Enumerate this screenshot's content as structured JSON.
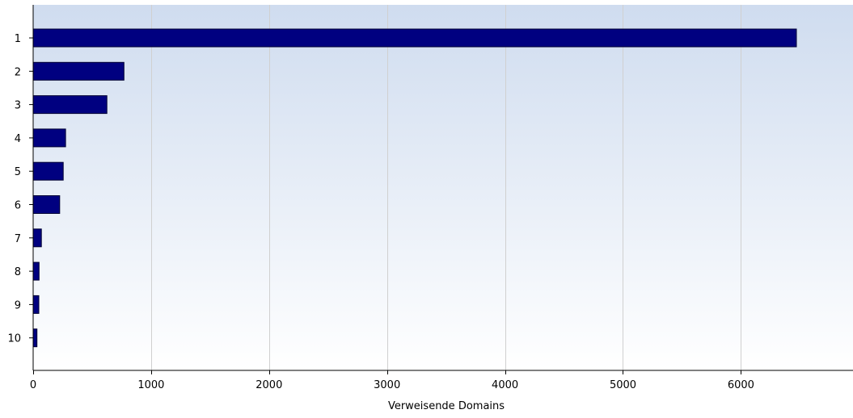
{
  "chart_data": {
    "type": "bar",
    "orientation": "horizontal",
    "categories": [
      "1",
      "2",
      "3",
      "4",
      "5",
      "6",
      "7",
      "8",
      "9",
      "10"
    ],
    "values": [
      6470,
      770,
      625,
      275,
      255,
      225,
      70,
      50,
      48,
      32
    ],
    "xlabel": "Verweisende Domains",
    "ylabel": "",
    "xlim": [
      0,
      6950
    ],
    "x_ticks": [
      0,
      1000,
      2000,
      3000,
      4000,
      5000,
      6000
    ],
    "grid": "vertical",
    "legend": "none",
    "colors": {
      "bar": "#000080",
      "bar_stroke": "#000033",
      "background_top": "#cfdcef",
      "background_bottom": "#ffffff",
      "grid": "#d0d0d0"
    }
  }
}
